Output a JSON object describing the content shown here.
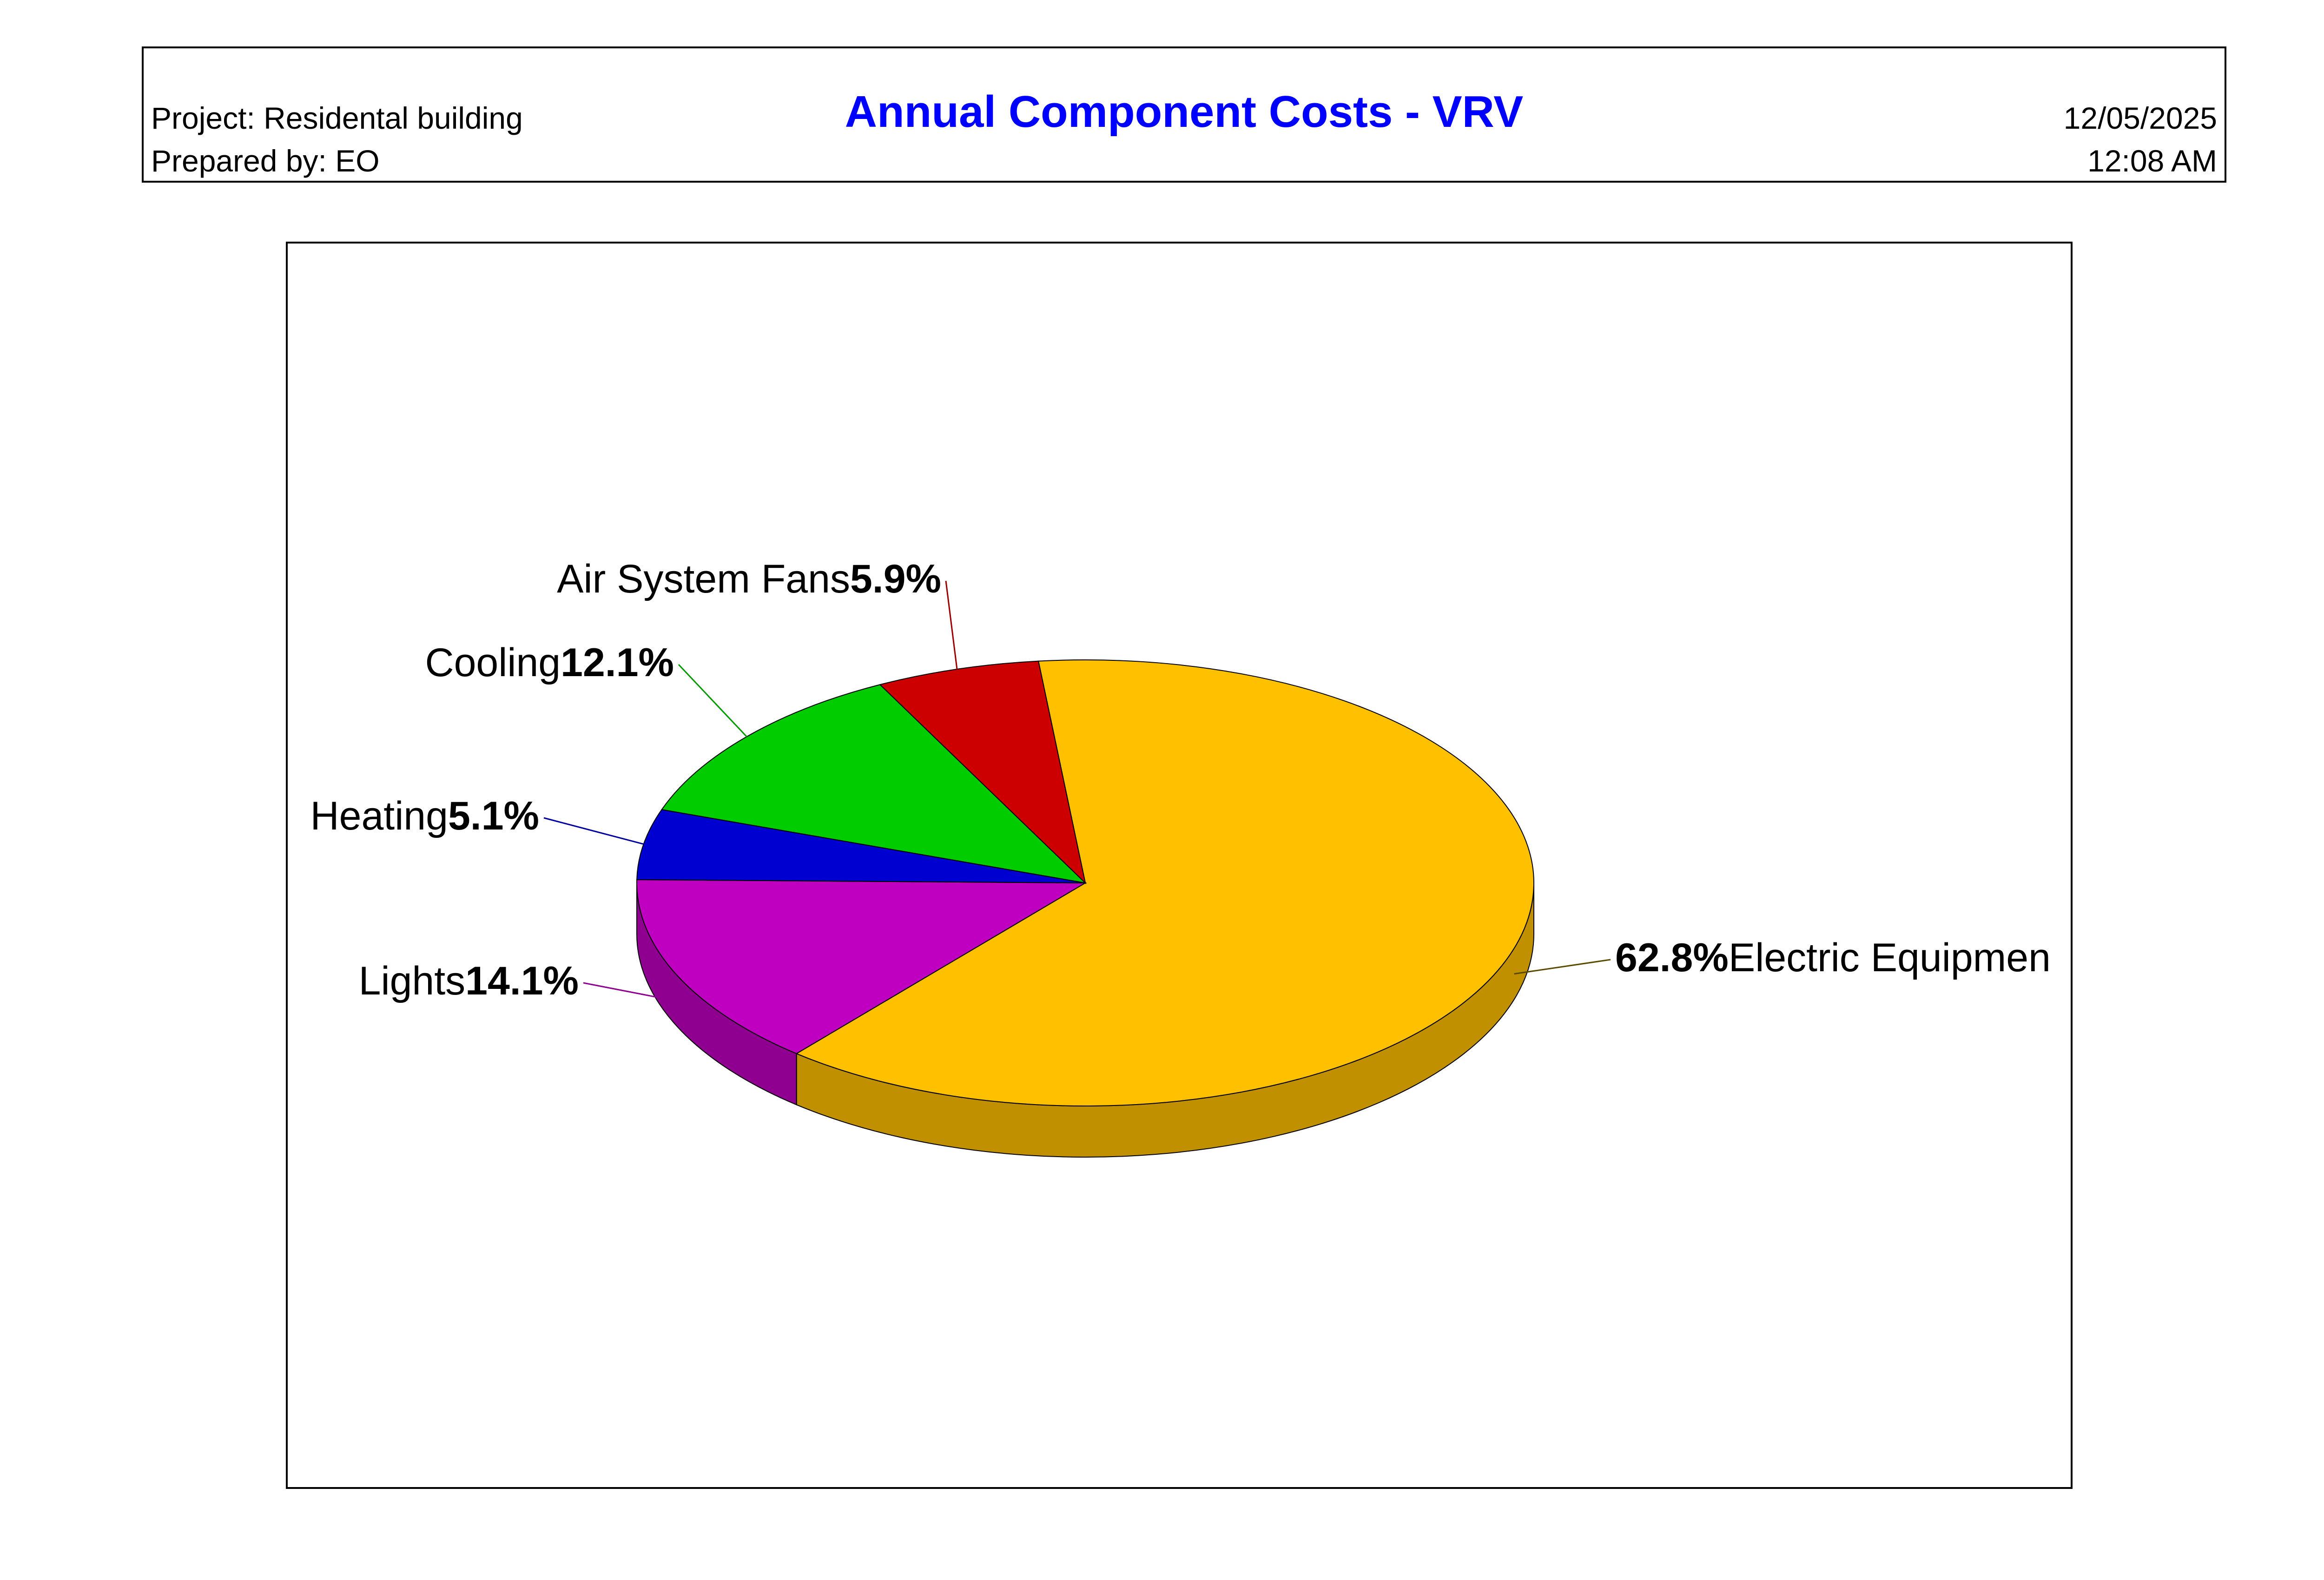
{
  "header": {
    "title": "Annual Component Costs - VRV",
    "project": "Project: Residental building",
    "prepared_by": "Prepared by: EO",
    "date": "12/05/2025",
    "time": "12:08 AM"
  },
  "chart_data": {
    "type": "pie",
    "title": "Annual Component Costs - VRV",
    "style": "3d",
    "unit": "%",
    "slices": [
      {
        "label": "Electric Equipment",
        "visible_label": "Electric Equipmen",
        "value": 62.8,
        "value_label": "62.8%",
        "color": "#FFC000",
        "side_color": "#C09000"
      },
      {
        "label": "Lights",
        "value": 14.1,
        "value_label": "14.1%",
        "color": "#C000C0",
        "side_color": "#900090"
      },
      {
        "label": "Heating",
        "value": 5.1,
        "value_label": "5.1%",
        "color": "#0000D0",
        "side_color": "#00009C"
      },
      {
        "label": "Cooling",
        "value": 12.1,
        "value_label": "12.1%",
        "color": "#00CC00",
        "side_color": "#009900"
      },
      {
        "label": "Air System Fans",
        "value": 5.9,
        "value_label": "5.9%",
        "color": "#CC0000",
        "side_color": "#990000"
      }
    ]
  }
}
